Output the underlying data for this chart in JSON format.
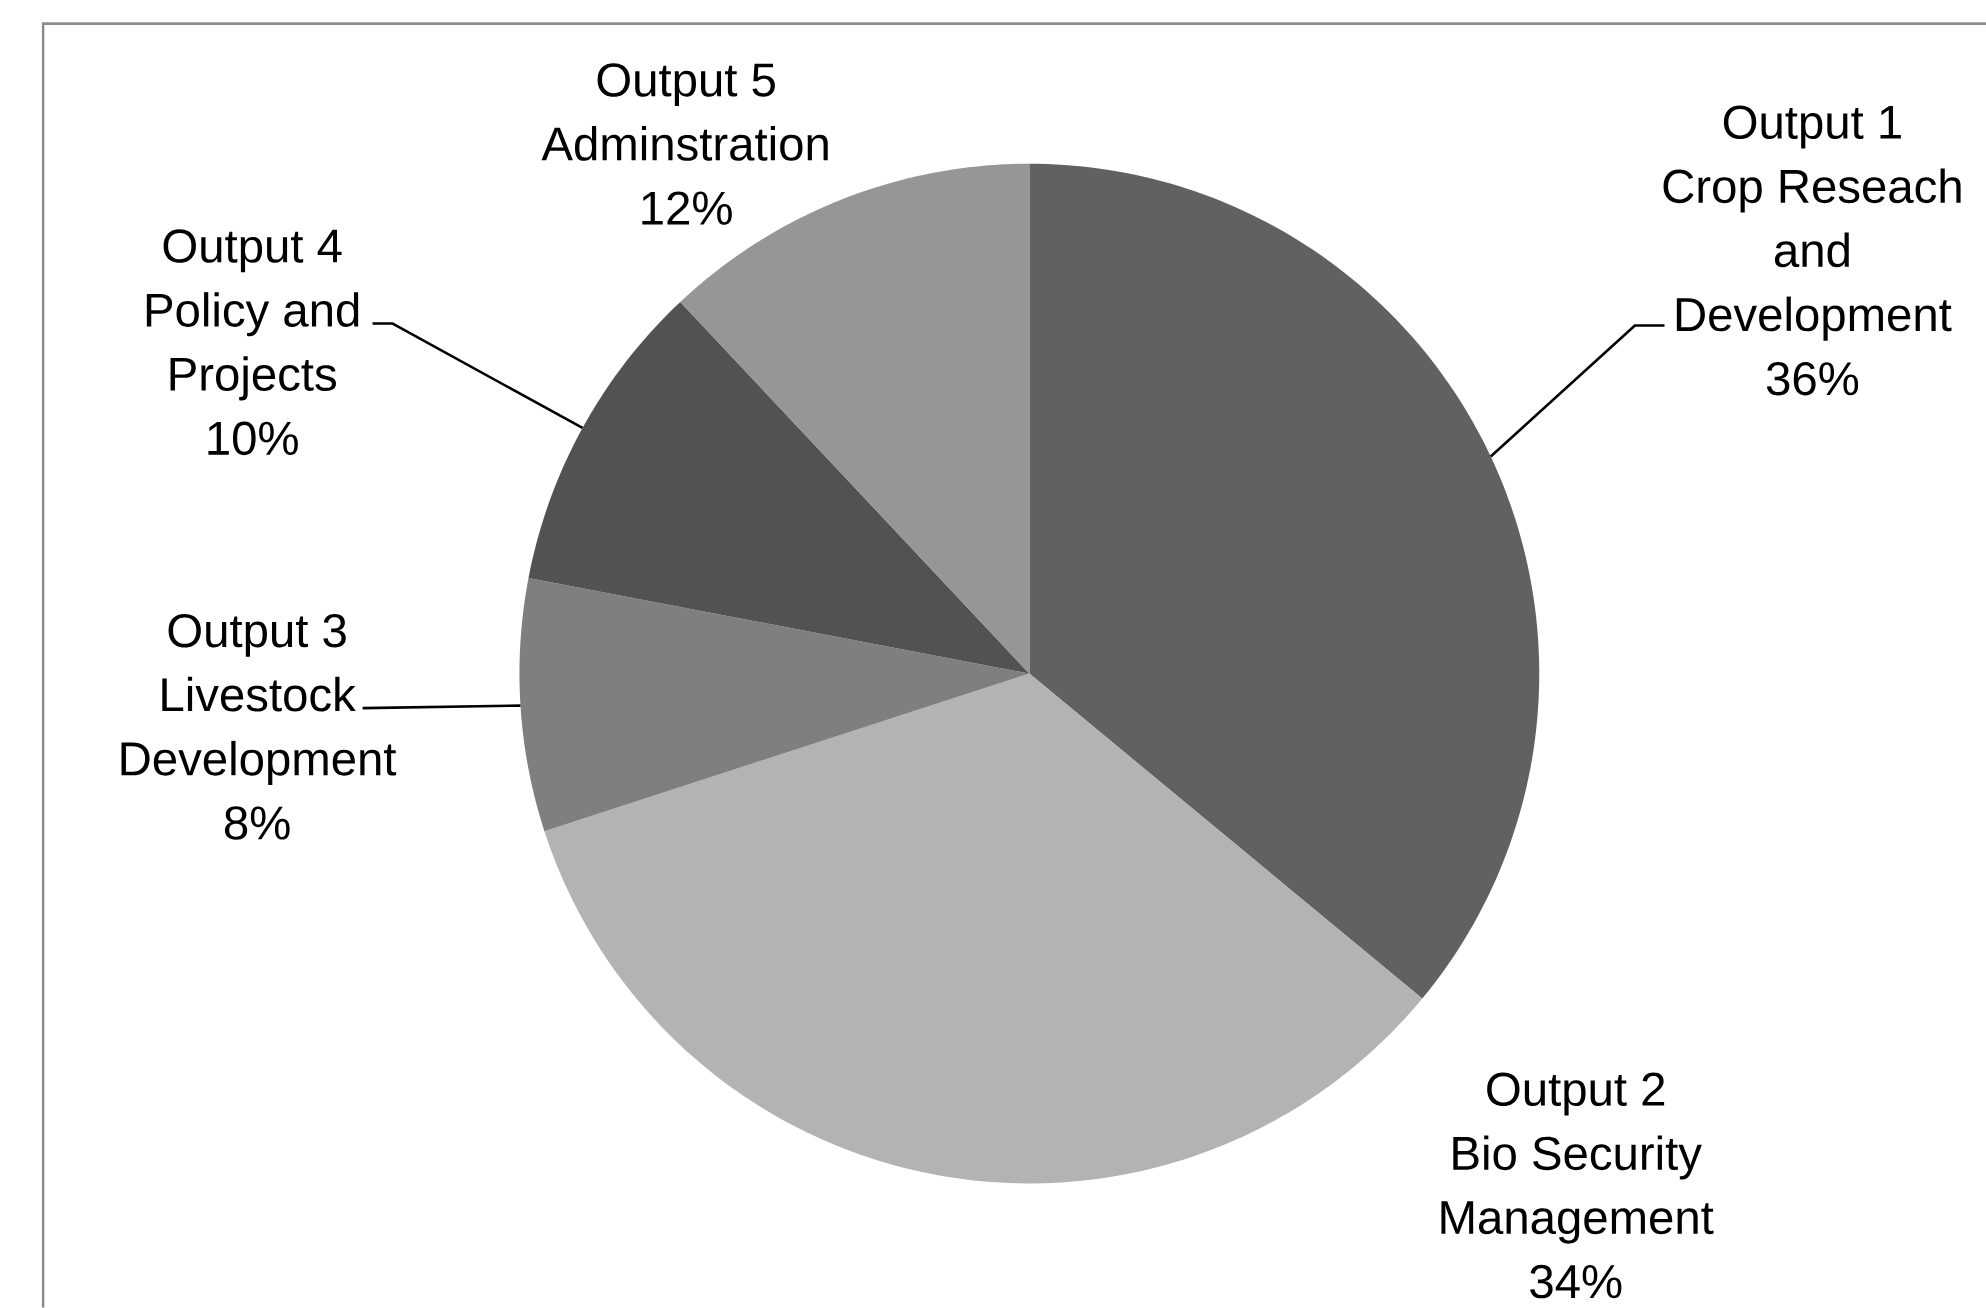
{
  "chart_data": {
    "type": "pie",
    "categories": [
      "Output 1 Crop Reseach and Development",
      "Output 2 Bio Security Management",
      "Output 3 Livestock Development",
      "Output 4 Policy and Projects",
      "Output 5 Adminstration"
    ],
    "values": [
      36,
      34,
      8,
      10,
      12
    ],
    "value_labels": [
      "36%",
      "34%",
      "8%",
      "10%",
      "12%"
    ],
    "colors": [
      "#616161",
      "#b3b3b3",
      "#7f7f7f",
      "#525252",
      "#969696"
    ]
  }
}
